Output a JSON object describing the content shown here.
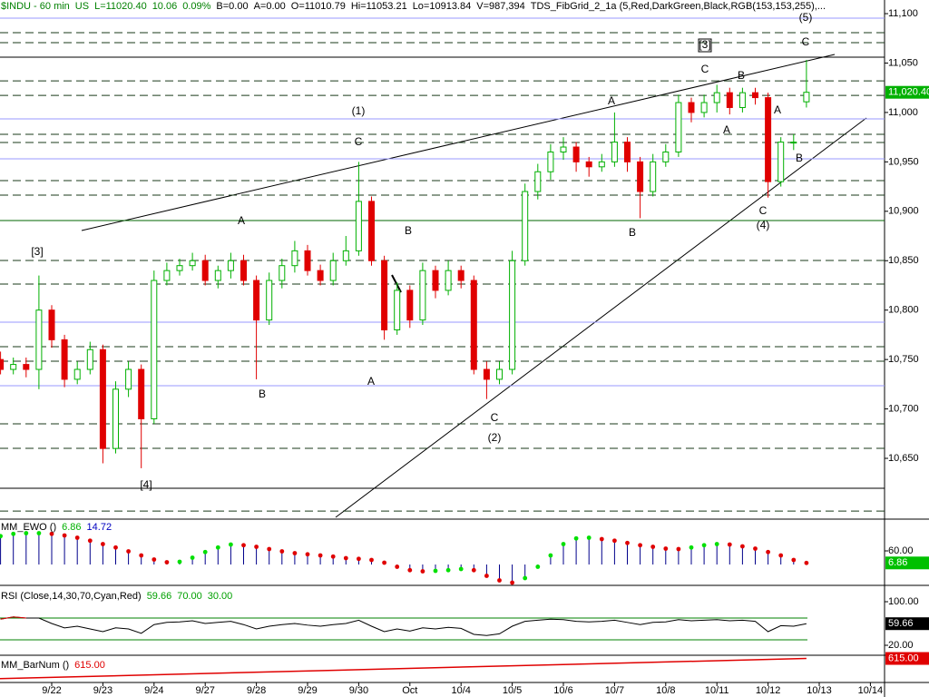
{
  "chart_data": {
    "type": "candlestick",
    "header": [
      {
        "text": "$INDU - 60 min",
        "color": "#008000"
      },
      {
        "text": "US",
        "color": "#008000"
      },
      {
        "text": "L=11020.40",
        "color": "#008000"
      },
      {
        "text": "10.06",
        "color": "#008000"
      },
      {
        "text": "0.09%",
        "color": "#008000"
      },
      {
        "text": "B=0.00",
        "color": "#000000"
      },
      {
        "text": "A=0.00",
        "color": "#000000"
      },
      {
        "text": "O=11010.79",
        "color": "#000000"
      },
      {
        "text": "Hi=11053.21",
        "color": "#000000"
      },
      {
        "text": "Lo=10913.84",
        "color": "#000000"
      },
      {
        "text": "V=987,394",
        "color": "#000000"
      },
      {
        "text": "TDS_FibGrid_2_1a (5,Red,DarkGreen,Black,RGB(153,153,255),...",
        "color": "#000000"
      }
    ],
    "categories": [
      null,
      null,
      null,
      null,
      "9/22",
      null,
      null,
      null,
      "9/23",
      null,
      null,
      null,
      "9/24",
      null,
      null,
      null,
      "9/27",
      null,
      null,
      null,
      "9/28",
      null,
      null,
      null,
      "9/29",
      null,
      null,
      null,
      "9/30",
      null,
      null,
      null,
      "Oct",
      null,
      null,
      null,
      "10/4",
      null,
      null,
      null,
      "10/5",
      null,
      null,
      null,
      "10/6",
      null,
      null,
      null,
      "10/7",
      null,
      null,
      null,
      "10/8",
      null,
      null,
      null,
      "10/11",
      null,
      null,
      null,
      "10/12",
      null,
      null,
      null,
      "10/13",
      null,
      null,
      null,
      "10/14"
    ],
    "open": [
      10750,
      10740,
      10745,
      10740,
      10800,
      10770,
      10730,
      10740,
      10760,
      10660,
      10720,
      10740,
      10690,
      10830,
      10840,
      10845,
      10850,
      10830,
      10840,
      10850,
      10830,
      10790,
      10830,
      10845,
      10860,
      10840,
      10830,
      10850,
      10860,
      10910,
      10850,
      10780,
      10820,
      10790,
      10840,
      10820,
      10840,
      10830,
      10740,
      10730,
      10740,
      10850,
      10920,
      10940,
      10960,
      10965,
      10950,
      10945,
      10950,
      10970,
      10950,
      10920,
      10950,
      10960,
      11010,
      11000,
      11010,
      11020,
      11005,
      11020,
      11015,
      10930,
      10970,
      11010.79,
      null,
      null,
      null,
      null,
      null
    ],
    "high": [
      10758,
      10752,
      10752,
      10835,
      10805,
      10775,
      10748,
      10768,
      10765,
      10728,
      10748,
      10745,
      10840,
      10848,
      10852,
      10858,
      10856,
      10845,
      10858,
      10856,
      10835,
      10838,
      10852,
      10870,
      10866,
      10846,
      10858,
      10875,
      10950,
      10915,
      10855,
      10828,
      10825,
      10848,
      10845,
      10850,
      10845,
      10835,
      10748,
      10748,
      10860,
      10928,
      10948,
      10968,
      10975,
      10970,
      10955,
      10958,
      11000,
      10975,
      10955,
      10958,
      10968,
      11018,
      11015,
      11018,
      11028,
      11025,
      11025,
      11025,
      11020,
      10975,
      10978,
      11053.21,
      null,
      null,
      null,
      null,
      null
    ],
    "low": [
      10735,
      10735,
      10732,
      10720,
      10762,
      10722,
      10725,
      10735,
      10645,
      10655,
      10712,
      10640,
      10685,
      10825,
      10835,
      10840,
      10825,
      10822,
      10832,
      10825,
      10730,
      10785,
      10822,
      10838,
      10835,
      10825,
      10825,
      10845,
      10855,
      10845,
      10770,
      10775,
      10782,
      10785,
      10812,
      10815,
      10822,
      10735,
      10710,
      10725,
      10735,
      10845,
      10912,
      10932,
      10952,
      10940,
      10935,
      10940,
      10945,
      10940,
      10893,
      10915,
      10945,
      10955,
      10990,
      10995,
      11000,
      10998,
      11000,
      11008,
      10913.84,
      10925,
      10962,
      11005,
      null,
      null,
      null,
      null,
      null
    ],
    "close": [
      10740,
      10745,
      10740,
      10800,
      10770,
      10730,
      10740,
      10760,
      10660,
      10720,
      10740,
      10690,
      10830,
      10840,
      10845,
      10850,
      10830,
      10840,
      10850,
      10830,
      10790,
      10830,
      10845,
      10860,
      10840,
      10830,
      10850,
      10860,
      10910,
      10850,
      10780,
      10820,
      10790,
      10840,
      10820,
      10840,
      10830,
      10740,
      10730,
      10740,
      10850,
      10920,
      10940,
      10960,
      10965,
      10950,
      10945,
      10950,
      10970,
      10950,
      10920,
      10950,
      10960,
      11010,
      11000,
      11010,
      11020,
      11005,
      11020,
      11015,
      10930,
      10970,
      10970,
      11020.4,
      null,
      null,
      null,
      null,
      null
    ],
    "up_color": "#00b000",
    "down_color": "#e00000",
    "ylim": [
      10588.5,
      11113.8
    ],
    "yticks": [
      {
        "value": 11100,
        "label": "11,100"
      },
      {
        "value": 11050,
        "label": "11,050"
      },
      {
        "value": 11000,
        "label": "11,000"
      },
      {
        "value": 10950,
        "label": "10,950"
      },
      {
        "value": 10900,
        "label": "10,900"
      },
      {
        "value": 10850,
        "label": "10,850"
      },
      {
        "value": 10800,
        "label": "10,800"
      },
      {
        "value": 10750,
        "label": "10,750"
      },
      {
        "value": 10700,
        "label": "10,700"
      },
      {
        "value": 10650,
        "label": "10,650"
      }
    ],
    "last_price": {
      "value": 11020.4,
      "label": "11,020.40",
      "color": "#00b000"
    },
    "levels": [
      {
        "value": 11095.4,
        "style": "solid",
        "color": "#9999ff"
      },
      {
        "value": 11080.7,
        "style": "dash",
        "color": "#1a3a1a"
      },
      {
        "value": 11070.6,
        "style": "dash",
        "color": "#1a3a1a"
      },
      {
        "value": 11055.9,
        "style": "solid",
        "color": "#000000"
      },
      {
        "value": 11032,
        "style": "dash",
        "color": "#1a3a1a"
      },
      {
        "value": 11017.3,
        "style": "dash",
        "color": "#1a3a1a"
      },
      {
        "value": 10993.5,
        "style": "solid",
        "color": "#9999ff"
      },
      {
        "value": 10977.9,
        "style": "dash",
        "color": "#1a3a1a"
      },
      {
        "value": 10969.6,
        "style": "dash",
        "color": "#1a3a1a"
      },
      {
        "value": 10953.1,
        "style": "solid",
        "color": "#9999ff"
      },
      {
        "value": 10931,
        "style": "dash",
        "color": "#1a3a1a"
      },
      {
        "value": 10916.3,
        "style": "dash",
        "color": "#1a3a1a"
      },
      {
        "value": 10890.6,
        "style": "solid",
        "color": "#006400"
      },
      {
        "value": 10850.2,
        "style": "dash",
        "color": "#1a3a1a"
      },
      {
        "value": 10826.3,
        "style": "dash",
        "color": "#1a3a1a"
      },
      {
        "value": 10787.8,
        "style": "solid",
        "color": "#9999ff"
      },
      {
        "value": 10763,
        "style": "dash",
        "color": "#1a3a1a"
      },
      {
        "value": 10748.3,
        "style": "dash",
        "color": "#1a3a1a"
      },
      {
        "value": 10723.5,
        "style": "solid",
        "color": "#9999ff"
      },
      {
        "value": 10684.9,
        "style": "dash",
        "color": "#1a3a1a"
      },
      {
        "value": 10660.1,
        "style": "dash",
        "color": "#1a3a1a"
      },
      {
        "value": 10619.7,
        "style": "solid",
        "color": "#000000"
      },
      {
        "value": 10596.7,
        "style": "dash",
        "color": "#1a3a1a"
      }
    ],
    "annotations": [
      "(1)",
      "C",
      "A",
      "B",
      "[3]",
      "[4]",
      "B",
      "A",
      "C",
      "(2)",
      "A",
      "B",
      "C",
      "[3]",
      "B",
      "A",
      "C",
      "(4)",
      "A",
      "B",
      "(5)",
      "C"
    ],
    "ewo": {
      "label": "MM_EWO ()",
      "readouts": [
        {
          "value": 6.86,
          "label": "6.86",
          "color": "#00b000"
        },
        {
          "value": 14.72,
          "label": "14.72",
          "color": "#0000c0"
        }
      ],
      "values": [
        125,
        135,
        138,
        138,
        135,
        128,
        118,
        105,
        90,
        75,
        58,
        40,
        22,
        10,
        12,
        30,
        55,
        75,
        88,
        85,
        78,
        68,
        58,
        50,
        45,
        40,
        35,
        28,
        25,
        20,
        8,
        -10,
        -25,
        -30,
        -28,
        -25,
        -20,
        -25,
        -50,
        -70,
        -80,
        -60,
        -10,
        40,
        90,
        115,
        118,
        112,
        105,
        95,
        85,
        78,
        70,
        68,
        75,
        85,
        90,
        88,
        80,
        70,
        55,
        40,
        20,
        6.86,
        null,
        null,
        null,
        null,
        null
      ],
      "ylim": [
        -92,
        200
      ],
      "yticks": [
        {
          "value": 60,
          "label": "60.00"
        }
      ],
      "last": {
        "value": 6.86,
        "label": "6.86",
        "color": "#00c000"
      },
      "hist_color": "#00008b",
      "up_color": "#00e000",
      "down_color": "#e00000"
    },
    "rsi": {
      "label": "RSI (Close,14,30,70,Cyan,Red)",
      "readouts": [
        {
          "value": 59.66,
          "label": "59.66",
          "color": "#00a000"
        },
        {
          "value": 70,
          "label": "70.00",
          "color": "#00a000"
        },
        {
          "value": 30,
          "label": "30.00",
          "color": "#00a000"
        }
      ],
      "values": [
        68,
        72,
        70,
        70,
        60,
        52,
        55,
        50,
        45,
        52,
        50,
        42,
        58,
        62,
        63,
        65,
        60,
        62,
        64,
        58,
        50,
        55,
        58,
        60,
        57,
        55,
        58,
        60,
        66,
        55,
        45,
        50,
        46,
        52,
        50,
        53,
        51,
        40,
        38,
        41,
        55,
        64,
        66,
        68,
        67,
        64,
        63,
        64,
        66,
        62,
        58,
        62,
        63,
        67,
        65,
        66,
        67,
        65,
        66,
        64,
        45,
        56,
        55,
        59.66,
        null,
        null,
        null,
        null,
        null
      ],
      "ylim": [
        1.7,
        130
      ],
      "yticks": [
        {
          "value": 100,
          "label": "100.00"
        },
        {
          "value": 20,
          "label": "20.00"
        }
      ],
      "last": {
        "value": 59.66,
        "label": "59.66",
        "color": "#000000"
      },
      "line_color": "#000000",
      "over_color": "#e00000",
      "band_color": "#008000"
    },
    "barnum": {
      "label": "MM_BarNum ()",
      "readouts": [
        {
          "value": 615,
          "label": "615.00",
          "color": "#e00000"
        }
      ],
      "values": [
        552,
        615
      ],
      "ylim": [
        540,
        625
      ],
      "last": {
        "value": 615,
        "label": "615.00",
        "color": "#e00000"
      },
      "line_color": "#e00000"
    }
  }
}
